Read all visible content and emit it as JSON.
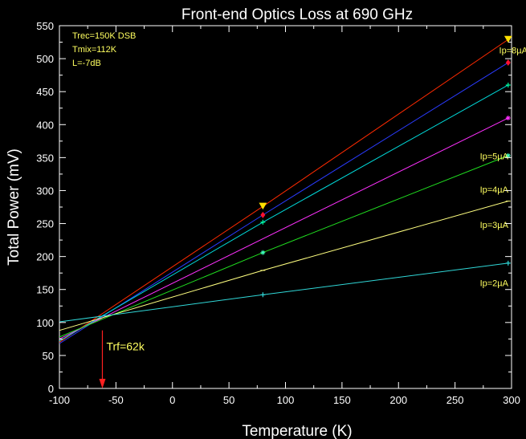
{
  "chart_data": {
    "type": "line",
    "title": "Front-end Optics Loss at 690 GHz",
    "xlabel": "Temperature (K)",
    "ylabel": "Total Power (mV)",
    "xlim": [
      -100,
      300
    ],
    "ylim": [
      0,
      550
    ],
    "x_ticks": [
      -100,
      -50,
      0,
      50,
      100,
      150,
      200,
      250,
      300
    ],
    "y_ticks": [
      0,
      50,
      100,
      150,
      200,
      250,
      300,
      350,
      400,
      450,
      500,
      550
    ],
    "x_tick_labels": [
      "-100",
      "-50",
      "0",
      "50",
      "100",
      "150",
      "200",
      "250",
      "300"
    ],
    "y_tick_labels": [
      "0",
      "50",
      "100",
      "150",
      "200",
      "250",
      "300",
      "350",
      "400",
      "450",
      "500",
      "550"
    ],
    "grid": false,
    "info_lines": [
      "Trec=150K DSB",
      "Tmix=112K",
      "L=-7dB"
    ],
    "annotation": {
      "text": "Trf=62k",
      "x": -62,
      "arrow_from_y": 88,
      "arrow_to_y": 0,
      "color": "#ff2020"
    },
    "series": [
      {
        "name": "Ip=8µA",
        "color": "#ff2a00",
        "points": [
          [
            -100,
            70
          ],
          [
            80,
            276
          ],
          [
            297,
            529
          ]
        ],
        "marker": "triangle-down",
        "marker_color": "#ffe000",
        "label_at": [
          289,
          513
        ]
      },
      {
        "name": "",
        "color": "#2a3bff",
        "points": [
          [
            -100,
            68
          ],
          [
            80,
            263
          ],
          [
            297,
            494
          ]
        ],
        "marker": "diamond",
        "marker_color": "#ff1030"
      },
      {
        "name": "",
        "color": "#00dada",
        "points": [
          [
            -100,
            72
          ],
          [
            80,
            252
          ],
          [
            297,
            460
          ]
        ],
        "marker": "plus",
        "marker_color": "#00ffa0"
      },
      {
        "name": "",
        "color": "#ff30ff",
        "points": [
          [
            -100,
            75
          ],
          [
            297,
            410
          ]
        ],
        "marker": "asterisk",
        "marker_color": "#ff30ff"
      },
      {
        "name": "Ip=5µA",
        "color": "#20e020",
        "points": [
          [
            -100,
            78
          ],
          [
            80,
            206
          ],
          [
            297,
            353
          ]
        ],
        "marker": "asterisk",
        "marker_color": "#40ffc0",
        "label_at": [
          272,
          352
        ]
      },
      {
        "name": "Ip=4µA",
        "color": "#20e020",
        "points": [],
        "marker": "none",
        "label_at": [
          272,
          302
        ]
      },
      {
        "name": "Ip=3µA",
        "color": "#ffff80",
        "points": [
          [
            -100,
            88
          ],
          [
            80,
            179
          ],
          [
            297,
            284
          ]
        ],
        "marker": "tick",
        "marker_color": "#ffff80",
        "label_at": [
          272,
          248
        ]
      },
      {
        "name": "Ip=2µA",
        "color": "#30d8d8",
        "points": [
          [
            -100,
            101
          ],
          [
            80,
            142
          ],
          [
            297,
            190
          ]
        ],
        "marker": "plus",
        "marker_color": "#30d8d8",
        "label_at": [
          272,
          160
        ]
      }
    ]
  }
}
